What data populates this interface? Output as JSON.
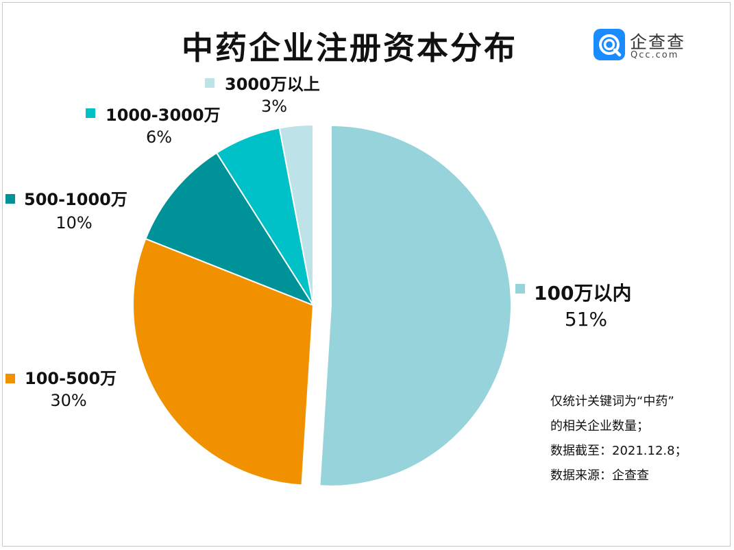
{
  "title": "中药企业注册资本分布",
  "logo": {
    "name": "企查查",
    "domain": "Qcc.com",
    "color": "#1a8cff"
  },
  "notes": [
    "仅统计关键词为“中药”",
    "的相关企业数量；",
    "数据截至：2021.12.8；",
    "数据来源：企查查"
  ],
  "chart_data": {
    "type": "pie",
    "title": "中药企业注册资本分布",
    "slices": [
      {
        "label": "100万以内",
        "value": 51,
        "value_label": "51%",
        "color": "#96d3da"
      },
      {
        "label": "100-500万",
        "value": 30,
        "value_label": "30%",
        "color": "#f29100"
      },
      {
        "label": "500-1000万",
        "value": 10,
        "value_label": "10%",
        "color": "#009299"
      },
      {
        "label": "1000-3000万",
        "value": 6,
        "value_label": "6%",
        "color": "#00c0c8"
      },
      {
        "label": "3000万以上",
        "value": 3,
        "value_label": "3%",
        "color": "#bde3e8"
      }
    ],
    "exploded_slice": "100万以内",
    "legend": "labels beside slices"
  }
}
